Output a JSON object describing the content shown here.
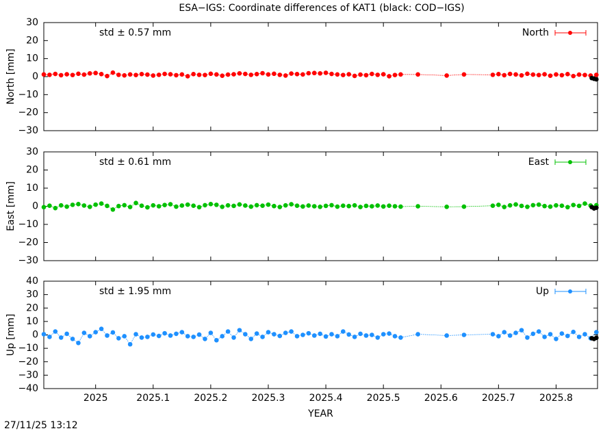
{
  "title": "ESA−IGS: Coordinate differences of KAT1 (black: COD−IGS)",
  "timestamp": "27/11/25 13:12",
  "chart_data": [
    {
      "type": "line",
      "ylabel": "North [mm]",
      "annotation": "std ± 0.57 mm",
      "annotation_color": "#ff0000",
      "xlim": [
        2024.91,
        2025.872
      ],
      "xticks": [
        2025,
        2025.1,
        2025.2,
        2025.3,
        2025.4,
        2025.5,
        2025.6,
        2025.7,
        2025.8
      ],
      "ylim": [
        -30,
        30
      ],
      "yticks": [
        {
          "value": -30,
          "label": "−30"
        },
        {
          "value": -20,
          "label": "−20"
        },
        {
          "value": -10,
          "label": "−10"
        },
        0,
        10,
        20,
        30
      ],
      "x": [
        2024.91,
        2024.92,
        2024.93,
        2024.94,
        2024.95,
        2024.96,
        2024.97,
        2024.98,
        2024.99,
        2025.0,
        2025.01,
        2025.02,
        2025.03,
        2025.04,
        2025.05,
        2025.06,
        2025.07,
        2025.08,
        2025.09,
        2025.1,
        2025.11,
        2025.12,
        2025.13,
        2025.14,
        2025.15,
        2025.16,
        2025.17,
        2025.18,
        2025.19,
        2025.2,
        2025.21,
        2025.22,
        2025.23,
        2025.24,
        2025.25,
        2025.26,
        2025.27,
        2025.28,
        2025.29,
        2025.3,
        2025.31,
        2025.32,
        2025.33,
        2025.34,
        2025.35,
        2025.36,
        2025.37,
        2025.38,
        2025.39,
        2025.4,
        2025.41,
        2025.42,
        2025.43,
        2025.44,
        2025.45,
        2025.46,
        2025.47,
        2025.48,
        2025.49,
        2025.5,
        2025.51,
        2025.52,
        2025.53,
        2025.56,
        2025.61,
        2025.64,
        2025.69,
        2025.7,
        2025.71,
        2025.72,
        2025.73,
        2025.74,
        2025.75,
        2025.76,
        2025.77,
        2025.78,
        2025.79,
        2025.8,
        2025.81,
        2025.82,
        2025.83,
        2025.84,
        2025.85,
        2025.86,
        2025.87
      ],
      "series": [
        {
          "name": "North",
          "color": "#ff0000",
          "values": [
            1.2,
            1.0,
            1.5,
            0.8,
            1.3,
            0.9,
            1.6,
            1.1,
            1.8,
            2.0,
            1.4,
            0.3,
            2.2,
            1.0,
            0.7,
            1.2,
            0.9,
            1.4,
            1.1,
            0.6,
            1.0,
            1.5,
            1.3,
            0.8,
            1.2,
            0.2,
            1.4,
            1.0,
            0.9,
            1.6,
            1.2,
            0.5,
            1.1,
            1.3,
            1.8,
            1.5,
            1.0,
            1.4,
            1.9,
            1.2,
            1.6,
            1.0,
            0.6,
            1.7,
            1.4,
            1.2,
            1.9,
            2.0,
            1.8,
            2.1,
            1.5,
            1.2,
            0.9,
            1.3,
            0.4,
            1.1,
            0.8,
            1.5,
            1.0,
            1.3,
            0.2,
            0.9,
            1.2,
            1.2,
            0.6,
            1.2,
            1.0,
            1.4,
            0.8,
            1.5,
            1.2,
            0.7,
            1.6,
            1.1,
            0.9,
            1.3,
            0.5,
            1.2,
            0.8,
            1.4,
            0.3,
            1.1,
            0.9,
            0.6,
            1.0
          ]
        },
        {
          "color": "#000000",
          "x": [
            2025.862,
            2025.866,
            2025.87
          ],
          "values": [
            -0.8,
            -1.2,
            -1.5
          ]
        }
      ]
    },
    {
      "type": "line",
      "ylabel": "East [mm]",
      "annotation": "std ± 0.61 mm",
      "annotation_color": "#00c000",
      "xlim": [
        2024.91,
        2025.872
      ],
      "xticks": [
        2025,
        2025.1,
        2025.2,
        2025.3,
        2025.4,
        2025.5,
        2025.6,
        2025.7,
        2025.8
      ],
      "ylim": [
        -30,
        30
      ],
      "yticks": [
        {
          "value": -30,
          "label": "−30"
        },
        {
          "value": -20,
          "label": "−20"
        },
        {
          "value": -10,
          "label": "−10"
        },
        0,
        10,
        20,
        30
      ],
      "x": [
        2024.91,
        2024.92,
        2024.93,
        2024.94,
        2024.95,
        2024.96,
        2024.97,
        2024.98,
        2024.99,
        2025.0,
        2025.01,
        2025.02,
        2025.03,
        2025.04,
        2025.05,
        2025.06,
        2025.07,
        2025.08,
        2025.09,
        2025.1,
        2025.11,
        2025.12,
        2025.13,
        2025.14,
        2025.15,
        2025.16,
        2025.17,
        2025.18,
        2025.19,
        2025.2,
        2025.21,
        2025.22,
        2025.23,
        2025.24,
        2025.25,
        2025.26,
        2025.27,
        2025.28,
        2025.29,
        2025.3,
        2025.31,
        2025.32,
        2025.33,
        2025.34,
        2025.35,
        2025.36,
        2025.37,
        2025.38,
        2025.39,
        2025.4,
        2025.41,
        2025.42,
        2025.43,
        2025.44,
        2025.45,
        2025.46,
        2025.47,
        2025.48,
        2025.49,
        2025.5,
        2025.51,
        2025.52,
        2025.53,
        2025.56,
        2025.61,
        2025.64,
        2025.69,
        2025.7,
        2025.71,
        2025.72,
        2025.73,
        2025.74,
        2025.75,
        2025.76,
        2025.77,
        2025.78,
        2025.79,
        2025.8,
        2025.81,
        2025.82,
        2025.83,
        2025.84,
        2025.85,
        2025.86,
        2025.87
      ],
      "series": [
        {
          "name": "East",
          "color": "#00c000",
          "values": [
            -0.5,
            0.3,
            -1.0,
            0.5,
            -0.2,
            0.8,
            1.2,
            0.4,
            -0.3,
            0.9,
            1.5,
            0.2,
            -1.8,
            0.1,
            0.6,
            -0.4,
            1.8,
            0.3,
            -0.6,
            0.5,
            0.0,
            0.7,
            1.1,
            -0.2,
            0.4,
            0.9,
            0.3,
            -0.5,
            0.6,
            1.2,
            0.8,
            -0.3,
            0.5,
            0.2,
            1.0,
            0.4,
            -0.2,
            0.6,
            0.3,
            0.9,
            0.1,
            -0.4,
            0.5,
            1.1,
            0.3,
            -0.1,
            0.4,
            0.0,
            -0.3,
            0.2,
            0.6,
            -0.2,
            0.3,
            0.1,
            0.5,
            -0.4,
            0.2,
            0.0,
            0.4,
            -0.1,
            0.3,
            0.0,
            -0.2,
            0.0,
            -0.3,
            -0.2,
            0.3,
            0.8,
            -0.4,
            0.5,
            1.0,
            0.2,
            -0.3,
            0.6,
            0.9,
            0.1,
            -0.2,
            0.5,
            0.3,
            -0.5,
            0.7,
            0.2,
            1.5,
            0.4,
            0.6
          ]
        },
        {
          "color": "#000000",
          "x": [
            2025.862,
            2025.866,
            2025.87
          ],
          "values": [
            -0.5,
            -1.2,
            -0.8
          ]
        }
      ]
    },
    {
      "type": "line",
      "ylabel": "Up [mm]",
      "xlabel": "YEAR",
      "annotation": "std ± 1.95 mm",
      "annotation_color": "#1e90ff",
      "xlim": [
        2024.91,
        2025.872
      ],
      "xticks": [
        2025,
        2025.1,
        2025.2,
        2025.3,
        2025.4,
        2025.5,
        2025.6,
        2025.7,
        2025.8
      ],
      "ylim": [
        -40,
        40
      ],
      "yticks": [
        {
          "value": -40,
          "label": "−40"
        },
        {
          "value": -30,
          "label": "−30"
        },
        {
          "value": -20,
          "label": "−20"
        },
        {
          "value": -10,
          "label": "−10"
        },
        0,
        10,
        20,
        30,
        40
      ],
      "x": [
        2024.91,
        2024.92,
        2024.93,
        2024.94,
        2024.95,
        2024.96,
        2024.97,
        2024.98,
        2024.99,
        2025.0,
        2025.01,
        2025.02,
        2025.03,
        2025.04,
        2025.05,
        2025.06,
        2025.07,
        2025.08,
        2025.09,
        2025.1,
        2025.11,
        2025.12,
        2025.13,
        2025.14,
        2025.15,
        2025.16,
        2025.17,
        2025.18,
        2025.19,
        2025.2,
        2025.21,
        2025.22,
        2025.23,
        2025.24,
        2025.25,
        2025.26,
        2025.27,
        2025.28,
        2025.29,
        2025.3,
        2025.31,
        2025.32,
        2025.33,
        2025.34,
        2025.35,
        2025.36,
        2025.37,
        2025.38,
        2025.39,
        2025.4,
        2025.41,
        2025.42,
        2025.43,
        2025.44,
        2025.45,
        2025.46,
        2025.47,
        2025.48,
        2025.49,
        2025.5,
        2025.51,
        2025.52,
        2025.53,
        2025.56,
        2025.61,
        2025.64,
        2025.69,
        2025.7,
        2025.71,
        2025.72,
        2025.73,
        2025.74,
        2025.75,
        2025.76,
        2025.77,
        2025.78,
        2025.79,
        2025.8,
        2025.81,
        2025.82,
        2025.83,
        2025.84,
        2025.85,
        2025.86,
        2025.87
      ],
      "series": [
        {
          "name": "Up",
          "color": "#1e90ff",
          "values": [
            0.5,
            -1.5,
            2.5,
            -2.0,
            0.8,
            -3.0,
            -6.0,
            1.5,
            -1.0,
            2.0,
            4.5,
            -0.5,
            1.8,
            -2.5,
            -1.0,
            -7.0,
            0.5,
            -2.0,
            -1.5,
            0.3,
            -0.8,
            1.2,
            -0.5,
            0.8,
            2.0,
            -1.0,
            -1.5,
            0.2,
            -3.0,
            1.5,
            -4.0,
            -1.0,
            2.5,
            -2.0,
            3.5,
            0.5,
            -3.0,
            1.0,
            -1.5,
            2.0,
            0.5,
            -0.8,
            1.5,
            2.5,
            -1.0,
            0.0,
            1.2,
            -0.5,
            0.8,
            -1.2,
            0.5,
            -1.0,
            2.5,
            0.3,
            -1.5,
            0.8,
            -0.5,
            0.0,
            -2.0,
            0.5,
            1.0,
            -1.0,
            -2.0,
            0.5,
            -0.5,
            0.0,
            0.5,
            -1.0,
            2.0,
            -0.5,
            1.5,
            3.5,
            -2.0,
            0.8,
            2.5,
            -1.5,
            0.5,
            -3.0,
            1.0,
            -0.8,
            2.2,
            -1.5,
            0.5,
            -2.5,
            2.0
          ]
        },
        {
          "color": "#000000",
          "x": [
            2025.862,
            2025.866,
            2025.87
          ],
          "values": [
            -2.5,
            -3.0,
            -2.2
          ]
        }
      ]
    }
  ]
}
